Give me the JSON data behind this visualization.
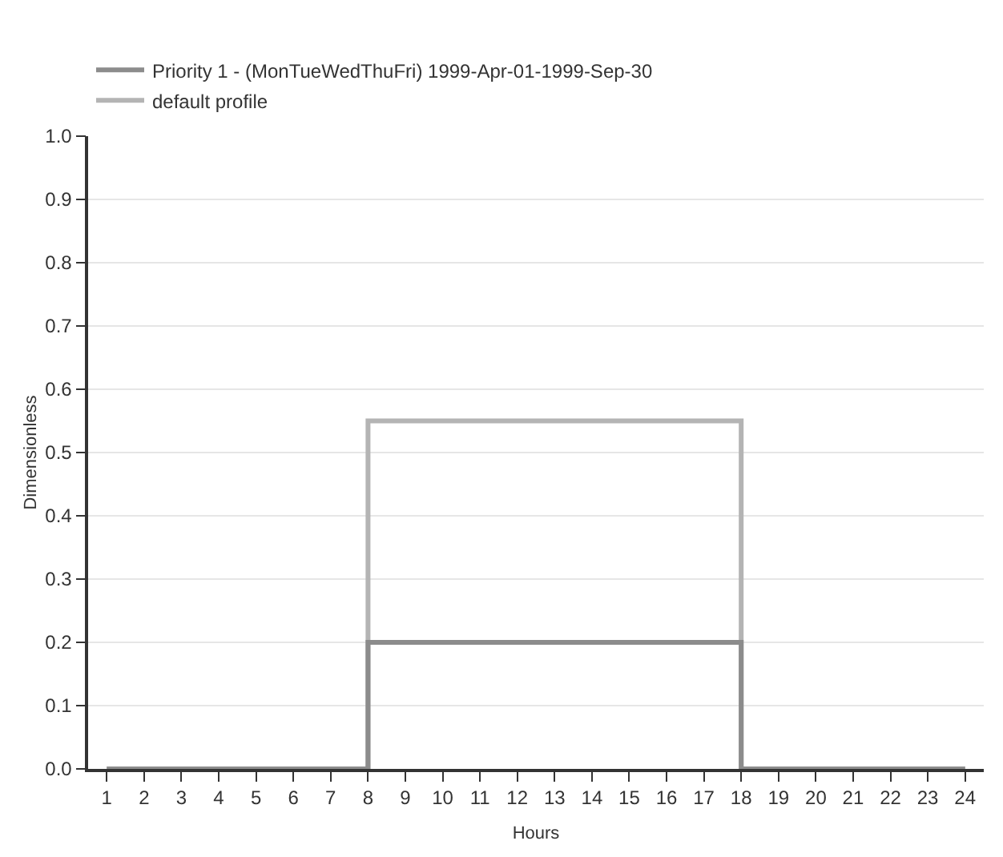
{
  "chart_data": {
    "type": "step",
    "xlabel": "Hours",
    "ylabel": "Dimensionless",
    "x": [
      1,
      2,
      3,
      4,
      5,
      6,
      7,
      8,
      9,
      10,
      11,
      12,
      13,
      14,
      15,
      16,
      17,
      18,
      19,
      20,
      21,
      22,
      23,
      24
    ],
    "series": [
      {
        "name": "Priority 1 - (MonTueWedThuFri) 1999-Apr-01-1999-Sep-30",
        "color": "#8c8c8c",
        "values": [
          0,
          0,
          0,
          0,
          0,
          0,
          0,
          0.2,
          0.2,
          0.2,
          0.2,
          0.2,
          0.2,
          0.2,
          0.2,
          0.2,
          0.2,
          0,
          0,
          0,
          0,
          0,
          0,
          0
        ]
      },
      {
        "name": "default profile",
        "color": "#b4b4b4",
        "values": [
          0,
          0,
          0,
          0,
          0,
          0,
          0,
          0.55,
          0.55,
          0.55,
          0.55,
          0.55,
          0.55,
          0.55,
          0.55,
          0.55,
          0.55,
          0,
          0,
          0,
          0,
          0,
          0,
          0
        ]
      }
    ],
    "xlim": [
      0.5,
      24.5
    ],
    "xticks": [
      1,
      2,
      3,
      4,
      5,
      6,
      7,
      8,
      9,
      10,
      11,
      12,
      13,
      14,
      15,
      16,
      17,
      18,
      19,
      20,
      21,
      22,
      23,
      24
    ],
    "ylim": [
      0,
      1
    ],
    "yticks": [
      {
        "value": 0,
        "label": "0.0"
      },
      {
        "value": 0.1,
        "label": "0.1"
      },
      {
        "value": 0.2,
        "label": "0.2"
      },
      {
        "value": 0.3,
        "label": "0.3"
      },
      {
        "value": 0.4,
        "label": "0.4"
      },
      {
        "value": 0.5,
        "label": "0.5"
      },
      {
        "value": 0.6,
        "label": "0.6"
      },
      {
        "value": 0.7,
        "label": "0.7"
      },
      {
        "value": 0.8,
        "label": "0.8"
      },
      {
        "value": 0.9,
        "label": "0.9"
      },
      {
        "value": 1,
        "label": "1.0"
      }
    ],
    "grid": "y",
    "legend": "top left",
    "marker": "none",
    "line_style": "solid"
  }
}
